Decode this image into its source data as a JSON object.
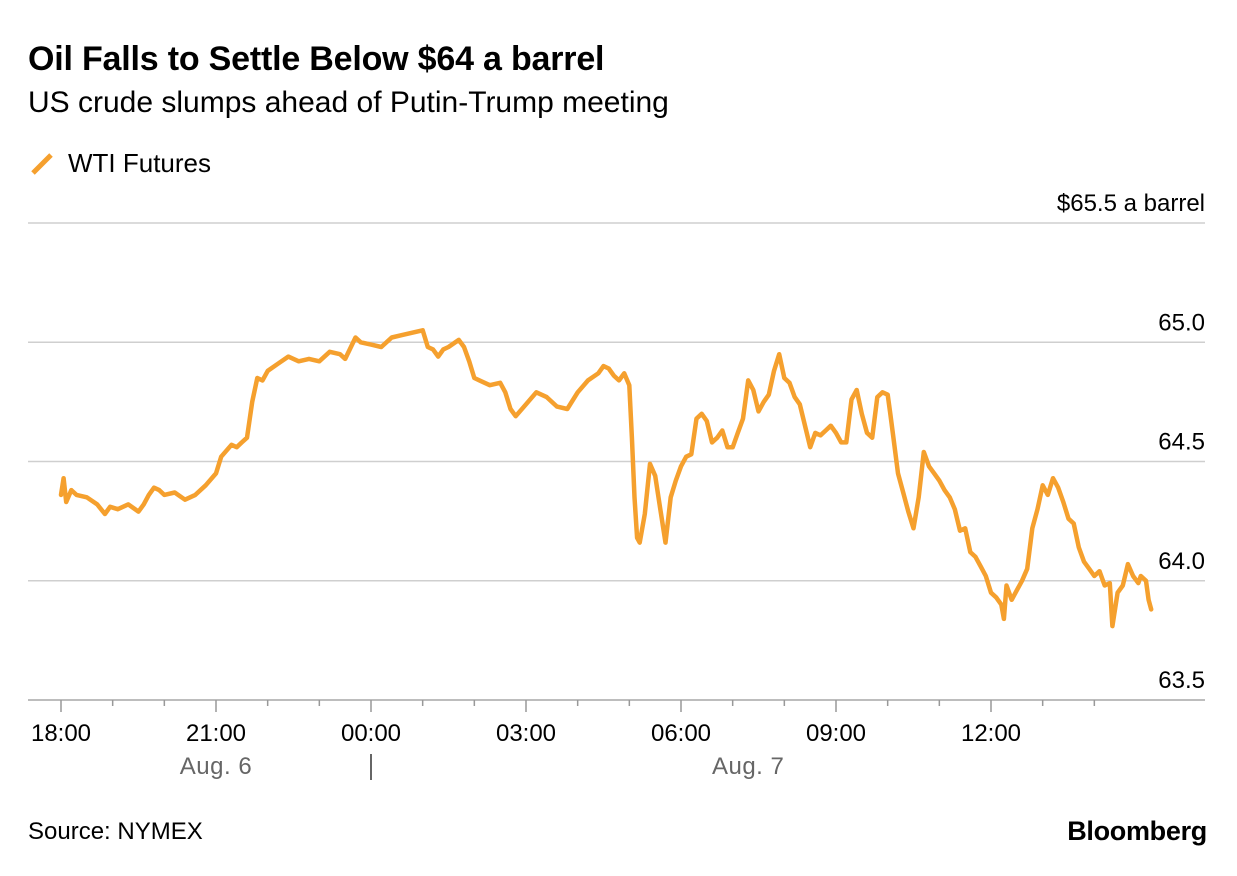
{
  "header": {
    "title": "Oil Falls to Settle Below $64 a barrel",
    "subtitle": "US crude slumps ahead of Putin-Trump meeting"
  },
  "legend": {
    "label": "WTI Futures",
    "color": "#f5a02e"
  },
  "footer": {
    "source": "Source: NYMEX",
    "brand": "Bloomberg"
  },
  "chart_data": {
    "type": "line",
    "title": "Oil Falls to Settle Below $64 a barrel",
    "subtitle": "US crude slumps ahead of Putin-Trump meeting",
    "ylabel": "$65.5 a barrel",
    "ylim": [
      63.5,
      65.5
    ],
    "y_ticks": [
      "$65.5 a barrel",
      "65.0",
      "64.5",
      "64.0",
      "63.5"
    ],
    "y_tick_values": [
      65.5,
      65.0,
      64.5,
      64.0,
      63.5
    ],
    "xlim": [
      0,
      22
    ],
    "x_ticks": [
      {
        "hour": 0,
        "label": "18:00"
      },
      {
        "hour": 3,
        "label": "21:00"
      },
      {
        "hour": 6,
        "label": "00:00"
      },
      {
        "hour": 9,
        "label": "03:00"
      },
      {
        "hour": 12,
        "label": "06:00"
      },
      {
        "hour": 15,
        "label": "09:00"
      },
      {
        "hour": 18,
        "label": "12:00"
      }
    ],
    "date_labels": [
      {
        "hour": 3,
        "label": "Aug. 6"
      },
      {
        "hour": 13.3,
        "label": "Aug. 7"
      }
    ],
    "day_divider_hour": 6,
    "grid": true,
    "series": [
      {
        "name": "WTI Futures",
        "color": "#f5a02e",
        "points": [
          [
            0.0,
            64.36
          ],
          [
            0.05,
            64.43
          ],
          [
            0.1,
            64.33
          ],
          [
            0.2,
            64.38
          ],
          [
            0.3,
            64.36
          ],
          [
            0.5,
            64.35
          ],
          [
            0.7,
            64.32
          ],
          [
            0.85,
            64.28
          ],
          [
            0.95,
            64.31
          ],
          [
            1.1,
            64.3
          ],
          [
            1.3,
            64.32
          ],
          [
            1.5,
            64.29
          ],
          [
            1.6,
            64.32
          ],
          [
            1.7,
            64.36
          ],
          [
            1.8,
            64.39
          ],
          [
            1.9,
            64.38
          ],
          [
            2.0,
            64.36
          ],
          [
            2.2,
            64.37
          ],
          [
            2.4,
            64.34
          ],
          [
            2.6,
            64.36
          ],
          [
            2.8,
            64.4
          ],
          [
            3.0,
            64.45
          ],
          [
            3.1,
            64.52
          ],
          [
            3.3,
            64.57
          ],
          [
            3.4,
            64.56
          ],
          [
            3.5,
            64.58
          ],
          [
            3.6,
            64.6
          ],
          [
            3.7,
            64.75
          ],
          [
            3.8,
            64.85
          ],
          [
            3.9,
            64.84
          ],
          [
            4.0,
            64.88
          ],
          [
            4.2,
            64.91
          ],
          [
            4.4,
            64.94
          ],
          [
            4.6,
            64.92
          ],
          [
            4.8,
            64.93
          ],
          [
            5.0,
            64.92
          ],
          [
            5.2,
            64.96
          ],
          [
            5.4,
            64.95
          ],
          [
            5.5,
            64.93
          ],
          [
            5.7,
            65.02
          ],
          [
            5.8,
            65.0
          ],
          [
            6.0,
            64.99
          ],
          [
            6.2,
            64.98
          ],
          [
            6.4,
            65.02
          ],
          [
            6.6,
            65.03
          ],
          [
            6.8,
            65.04
          ],
          [
            7.0,
            65.05
          ],
          [
            7.1,
            64.98
          ],
          [
            7.2,
            64.97
          ],
          [
            7.3,
            64.94
          ],
          [
            7.4,
            64.97
          ],
          [
            7.5,
            64.98
          ],
          [
            7.7,
            65.01
          ],
          [
            7.8,
            64.98
          ],
          [
            7.9,
            64.92
          ],
          [
            8.0,
            64.85
          ],
          [
            8.1,
            64.84
          ],
          [
            8.3,
            64.82
          ],
          [
            8.5,
            64.83
          ],
          [
            8.6,
            64.79
          ],
          [
            8.7,
            64.72
          ],
          [
            8.8,
            64.69
          ],
          [
            9.0,
            64.74
          ],
          [
            9.2,
            64.79
          ],
          [
            9.4,
            64.77
          ],
          [
            9.6,
            64.73
          ],
          [
            9.8,
            64.72
          ],
          [
            10.0,
            64.79
          ],
          [
            10.2,
            64.84
          ],
          [
            10.4,
            64.87
          ],
          [
            10.5,
            64.9
          ],
          [
            10.6,
            64.89
          ],
          [
            10.7,
            64.86
          ],
          [
            10.8,
            64.84
          ],
          [
            10.9,
            64.87
          ],
          [
            11.0,
            64.82
          ],
          [
            11.05,
            64.6
          ],
          [
            11.1,
            64.35
          ],
          [
            11.15,
            64.18
          ],
          [
            11.2,
            64.16
          ],
          [
            11.3,
            64.28
          ],
          [
            11.4,
            64.49
          ],
          [
            11.5,
            64.44
          ],
          [
            11.6,
            64.3
          ],
          [
            11.7,
            64.16
          ],
          [
            11.8,
            64.35
          ],
          [
            11.9,
            64.42
          ],
          [
            12.0,
            64.48
          ],
          [
            12.1,
            64.52
          ],
          [
            12.2,
            64.53
          ],
          [
            12.3,
            64.68
          ],
          [
            12.4,
            64.7
          ],
          [
            12.5,
            64.67
          ],
          [
            12.6,
            64.58
          ],
          [
            12.7,
            64.6
          ],
          [
            12.8,
            64.63
          ],
          [
            12.9,
            64.56
          ],
          [
            13.0,
            64.56
          ],
          [
            13.1,
            64.62
          ],
          [
            13.2,
            64.68
          ],
          [
            13.3,
            64.84
          ],
          [
            13.4,
            64.8
          ],
          [
            13.5,
            64.71
          ],
          [
            13.6,
            64.75
          ],
          [
            13.7,
            64.78
          ],
          [
            13.8,
            64.88
          ],
          [
            13.9,
            64.95
          ],
          [
            14.0,
            64.85
          ],
          [
            14.1,
            64.83
          ],
          [
            14.2,
            64.77
          ],
          [
            14.3,
            64.74
          ],
          [
            14.4,
            64.65
          ],
          [
            14.5,
            64.56
          ],
          [
            14.6,
            64.62
          ],
          [
            14.7,
            64.61
          ],
          [
            14.8,
            64.63
          ],
          [
            14.9,
            64.65
          ],
          [
            15.0,
            64.62
          ],
          [
            15.1,
            64.58
          ],
          [
            15.2,
            64.58
          ],
          [
            15.3,
            64.76
          ],
          [
            15.4,
            64.8
          ],
          [
            15.5,
            64.7
          ],
          [
            15.6,
            64.62
          ],
          [
            15.7,
            64.6
          ],
          [
            15.8,
            64.77
          ],
          [
            15.9,
            64.79
          ],
          [
            16.0,
            64.78
          ],
          [
            16.05,
            64.7
          ],
          [
            16.1,
            64.62
          ],
          [
            16.2,
            64.45
          ],
          [
            16.3,
            64.37
          ],
          [
            16.4,
            64.29
          ],
          [
            16.5,
            64.22
          ],
          [
            16.6,
            64.35
          ],
          [
            16.7,
            64.54
          ],
          [
            16.8,
            64.48
          ],
          [
            16.9,
            64.45
          ],
          [
            17.0,
            64.42
          ],
          [
            17.1,
            64.38
          ],
          [
            17.2,
            64.35
          ],
          [
            17.3,
            64.3
          ],
          [
            17.4,
            64.21
          ],
          [
            17.5,
            64.22
          ],
          [
            17.6,
            64.12
          ],
          [
            17.7,
            64.1
          ],
          [
            17.8,
            64.06
          ],
          [
            17.9,
            64.02
          ],
          [
            18.0,
            63.95
          ],
          [
            18.1,
            63.93
          ],
          [
            18.2,
            63.9
          ],
          [
            18.25,
            63.84
          ],
          [
            18.3,
            63.98
          ],
          [
            18.4,
            63.92
          ],
          [
            18.5,
            63.96
          ],
          [
            18.6,
            64.0
          ],
          [
            18.7,
            64.05
          ],
          [
            18.8,
            64.22
          ],
          [
            18.9,
            64.3
          ],
          [
            19.0,
            64.4
          ],
          [
            19.1,
            64.36
          ],
          [
            19.2,
            64.43
          ],
          [
            19.3,
            64.39
          ],
          [
            19.4,
            64.33
          ],
          [
            19.5,
            64.26
          ],
          [
            19.6,
            64.24
          ],
          [
            19.7,
            64.14
          ],
          [
            19.8,
            64.08
          ],
          [
            19.9,
            64.05
          ],
          [
            20.0,
            64.02
          ],
          [
            20.1,
            64.04
          ],
          [
            20.2,
            63.98
          ],
          [
            20.3,
            63.99
          ],
          [
            20.35,
            63.81
          ],
          [
            20.45,
            63.95
          ],
          [
            20.55,
            63.98
          ],
          [
            20.65,
            64.07
          ],
          [
            20.75,
            64.02
          ],
          [
            20.85,
            63.99
          ],
          [
            20.9,
            64.02
          ],
          [
            21.0,
            64.0
          ],
          [
            21.05,
            63.92
          ],
          [
            21.1,
            63.88
          ]
        ]
      }
    ]
  }
}
